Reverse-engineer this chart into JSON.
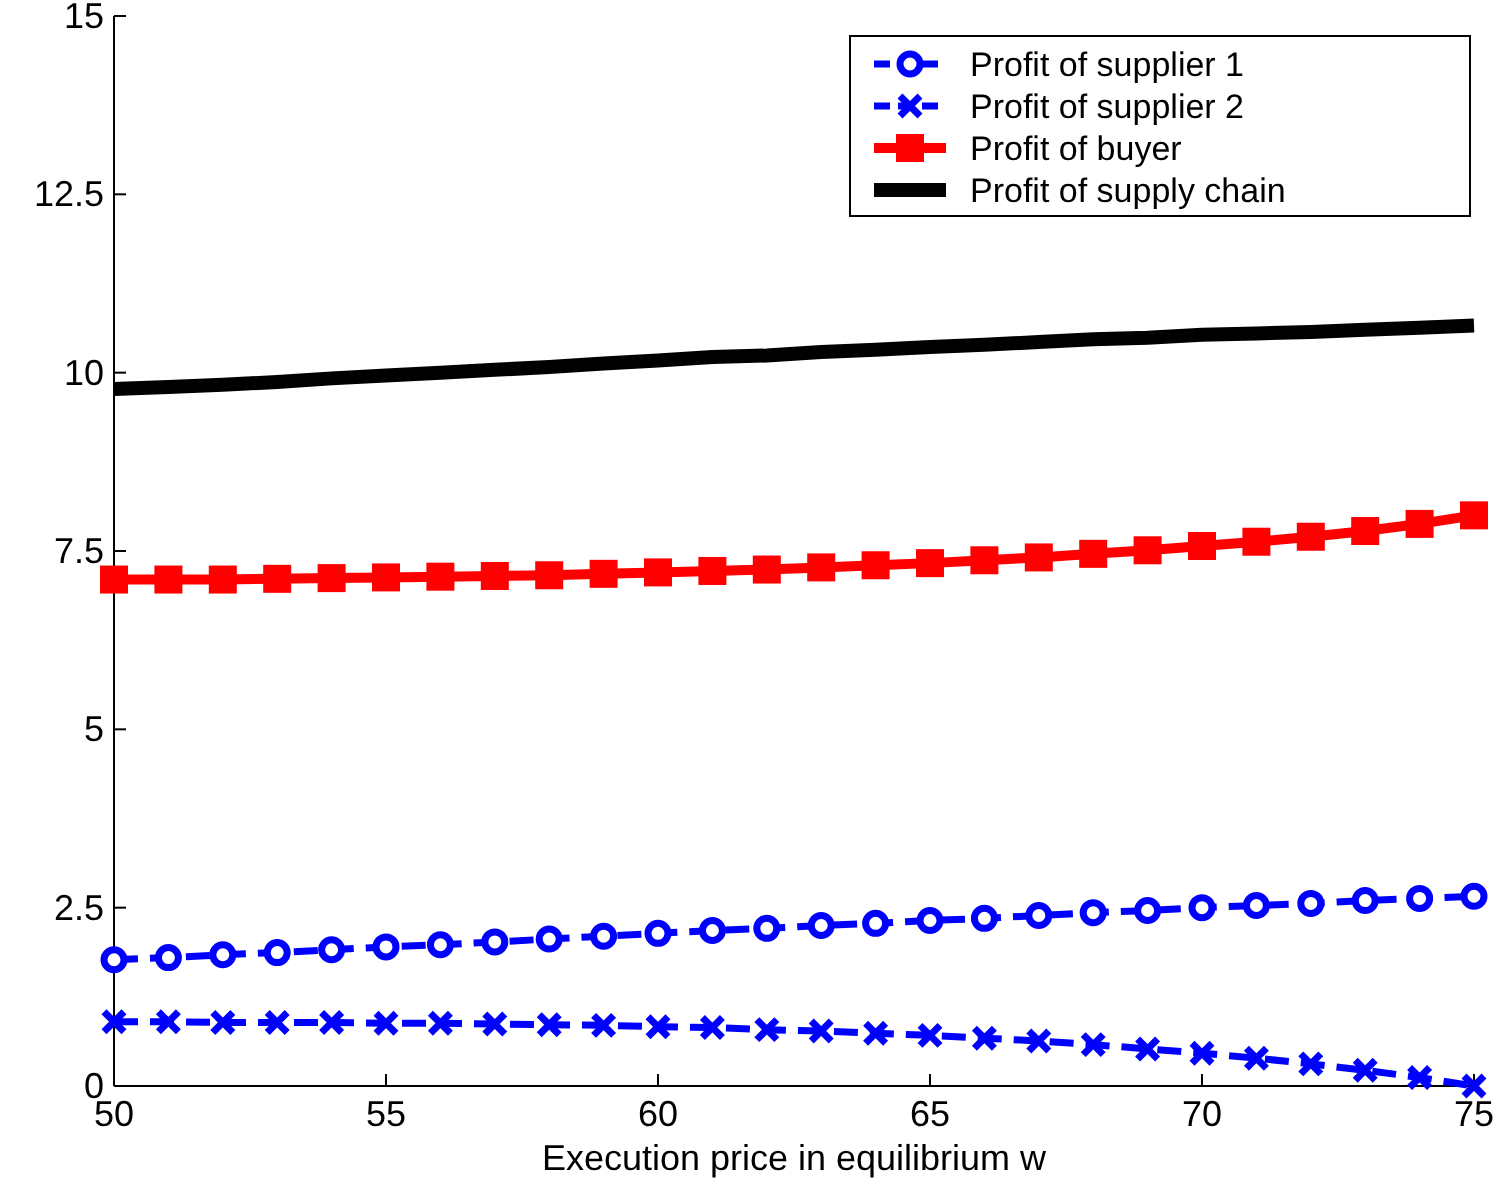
{
  "chart_data": {
    "type": "line",
    "xlabel": "Execution price in equilibrium w",
    "x": [
      50,
      51,
      52,
      53,
      54,
      55,
      56,
      57,
      58,
      59,
      60,
      61,
      62,
      63,
      64,
      65,
      66,
      67,
      68,
      69,
      70,
      71,
      72,
      73,
      74,
      75
    ],
    "xlim": [
      50,
      75
    ],
    "xticks": [
      50,
      55,
      60,
      65,
      70,
      75
    ],
    "ylim": [
      0,
      15
    ],
    "yticks": [
      0,
      2.5,
      5,
      7.5,
      10,
      12.5,
      15
    ],
    "grid": false,
    "legend": "top right",
    "series": [
      {
        "name": "Profit of supplier 1",
        "color": "#0000ff",
        "marker": "circle",
        "line_style": "dashed",
        "values": [
          1.77,
          1.8,
          1.84,
          1.87,
          1.91,
          1.95,
          1.98,
          2.02,
          2.06,
          2.1,
          2.14,
          2.18,
          2.21,
          2.25,
          2.28,
          2.32,
          2.35,
          2.39,
          2.43,
          2.46,
          2.5,
          2.53,
          2.56,
          2.6,
          2.63,
          2.66
        ]
      },
      {
        "name": "Profit of supplier 2",
        "color": "#0000ff",
        "marker": "cross",
        "line_style": "dashed",
        "values": [
          0.9,
          0.9,
          0.89,
          0.89,
          0.89,
          0.88,
          0.88,
          0.87,
          0.86,
          0.85,
          0.83,
          0.82,
          0.79,
          0.77,
          0.74,
          0.71,
          0.67,
          0.63,
          0.58,
          0.52,
          0.46,
          0.39,
          0.31,
          0.22,
          0.12,
          0.0
        ]
      },
      {
        "name": "Profit of buyer",
        "color": "#ff0000",
        "marker": "square",
        "line_style": "solid",
        "values": [
          7.1,
          7.1,
          7.1,
          7.11,
          7.12,
          7.13,
          7.14,
          7.15,
          7.16,
          7.18,
          7.2,
          7.22,
          7.24,
          7.27,
          7.3,
          7.33,
          7.37,
          7.41,
          7.46,
          7.51,
          7.57,
          7.63,
          7.7,
          7.78,
          7.88,
          8.0
        ]
      },
      {
        "name": "Profit of supply chain",
        "color": "#000000",
        "marker": "none",
        "line_style": "solid",
        "values": [
          9.77,
          9.8,
          9.83,
          9.87,
          9.92,
          9.96,
          10.0,
          10.04,
          10.08,
          10.13,
          10.17,
          10.22,
          10.24,
          10.29,
          10.32,
          10.36,
          10.39,
          10.43,
          10.47,
          10.49,
          10.53,
          10.55,
          10.57,
          10.6,
          10.63,
          10.66
        ]
      }
    ]
  }
}
